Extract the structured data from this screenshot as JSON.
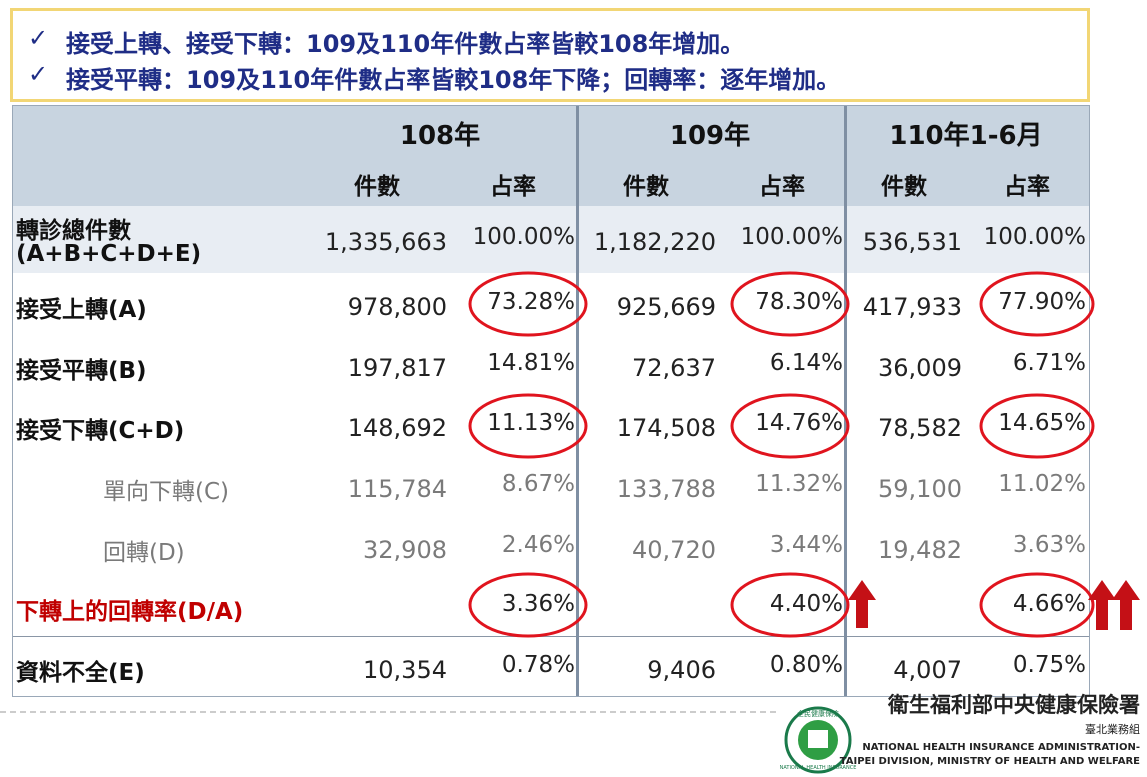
{
  "bullets": [
    {
      "mark": "✓",
      "text": "接受上轉、接受下轉：109及110年件數占率皆較108年增加。"
    },
    {
      "mark": "✓",
      "text": "接受平轉：109及110年件數占率皆較108年下降；回轉率：逐年增加。"
    }
  ],
  "table": {
    "years": [
      "108年",
      "109年",
      "110年1-6月"
    ],
    "subheaders": [
      "件數",
      "占率",
      "件數",
      "占率",
      "件數",
      "占率"
    ],
    "rows": [
      {
        "label": [
          "轉診總件數",
          "(A+B+C+D+E)"
        ],
        "cells": [
          "1,335,663",
          "100.00%",
          "1,182,220",
          "100.00%",
          "536,531",
          "100.00%"
        ]
      },
      {
        "label": [
          "接受上轉(A)"
        ],
        "cells": [
          "978,800",
          "73.28%",
          "925,669",
          "78.30%",
          "417,933",
          "77.90%"
        ]
      },
      {
        "label": [
          "接受平轉(B)"
        ],
        "cells": [
          "197,817",
          "14.81%",
          "72,637",
          "6.14%",
          "36,009",
          "6.71%"
        ]
      },
      {
        "label": [
          "接受下轉(C+D)"
        ],
        "cells": [
          "148,692",
          "11.13%",
          "174,508",
          "14.76%",
          "78,582",
          "14.65%"
        ]
      },
      {
        "label": [
          "單向下轉(C)"
        ],
        "cells": [
          "115,784",
          "8.67%",
          "133,788",
          "11.32%",
          "59,100",
          "11.02%"
        ]
      },
      {
        "label": [
          "回轉(D)"
        ],
        "cells": [
          "32,908",
          "2.46%",
          "40,720",
          "3.44%",
          "19,482",
          "3.63%"
        ]
      },
      {
        "label": [
          "下轉上的回轉率(D/A)"
        ],
        "cells": [
          null,
          "3.36%",
          null,
          "4.40%",
          null,
          "4.66%"
        ]
      },
      {
        "label": [
          "資料不全(E)"
        ],
        "cells": [
          "10,354",
          "0.78%",
          "9,406",
          "0.80%",
          "4,007",
          "0.75%"
        ]
      }
    ]
  },
  "logo": {
    "badge_top": "全民健康保險",
    "badge_bottom": "NATIONAL HEALTH INSURANCE",
    "org": "衛生福利部中央健康保險署",
    "division": "臺北業務組",
    "english_1": "NATIONAL HEALTH INSURANCE ADMINISTRATION-",
    "english_2": "TAIPEI DIVISION, MINISTRY OF HEALTH AND WELFARE"
  }
}
